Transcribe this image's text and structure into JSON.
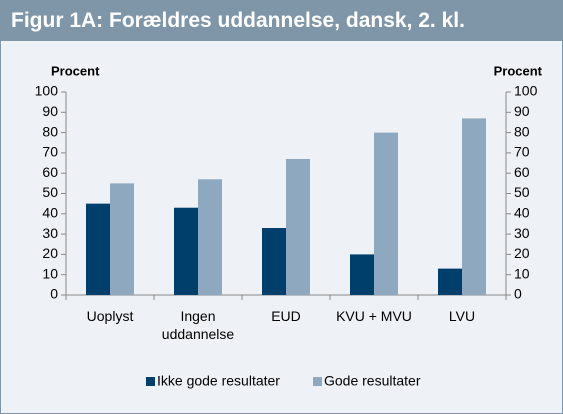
{
  "chart_data": {
    "type": "bar",
    "title": "Figur 1A: Forældres uddannelse, dansk, 2. kl.",
    "ylabel": "Procent",
    "y2label": "Procent",
    "categories": [
      "Uoplyst",
      "Ingen uddannelse",
      "EUD",
      "KVU + MVU",
      "LVU"
    ],
    "series": [
      {
        "name": "Ikke gode resultater",
        "color": "#003f6b",
        "values": [
          45,
          43,
          33,
          20,
          13
        ]
      },
      {
        "name": "Gode resultater",
        "color": "#8ea9bf",
        "values": [
          55,
          57,
          67,
          80,
          87
        ]
      }
    ],
    "ylim": [
      0,
      100
    ],
    "yticks": [
      0,
      10,
      20,
      30,
      40,
      50,
      60,
      70,
      80,
      90,
      100
    ],
    "y2lim": [
      0,
      100
    ],
    "y2ticks": [
      0,
      10,
      20,
      30,
      40,
      50,
      60,
      70,
      80,
      90,
      100
    ],
    "legend": "bottom"
  }
}
